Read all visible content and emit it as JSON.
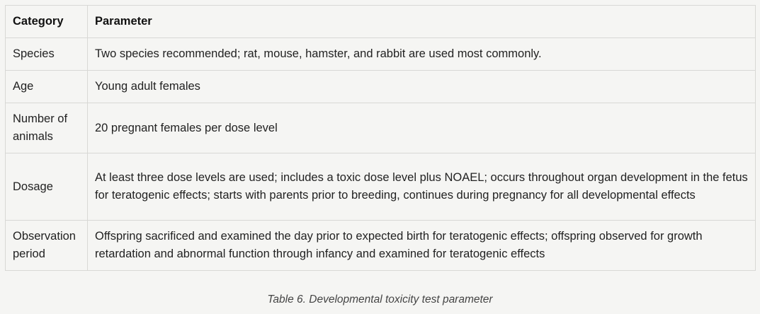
{
  "table": {
    "headers": [
      "Category",
      "Parameter"
    ],
    "rows": [
      {
        "category": "Species",
        "parameter": "Two species recommended; rat, mouse, hamster, and rabbit are used most commonly."
      },
      {
        "category": "Age",
        "parameter": "Young adult females"
      },
      {
        "category": "Number of animals",
        "parameter": "20 pregnant females per dose level"
      },
      {
        "category": "Dosage",
        "parameter": "At least three dose levels are used; includes a toxic dose level plus NOAEL; occurs throughout organ development in the fetus for teratogenic effects; starts with parents prior to breeding, continues during pregnancy for all developmental effects"
      },
      {
        "category": "Observation period",
        "parameter": "Offspring sacrificed and examined the day prior to expected birth for teratogenic effects; offspring observed for growth retardation and abnormal function through infancy and examined for teratogenic effects"
      }
    ]
  },
  "caption": "Table 6. Developmental toxicity test parameter"
}
